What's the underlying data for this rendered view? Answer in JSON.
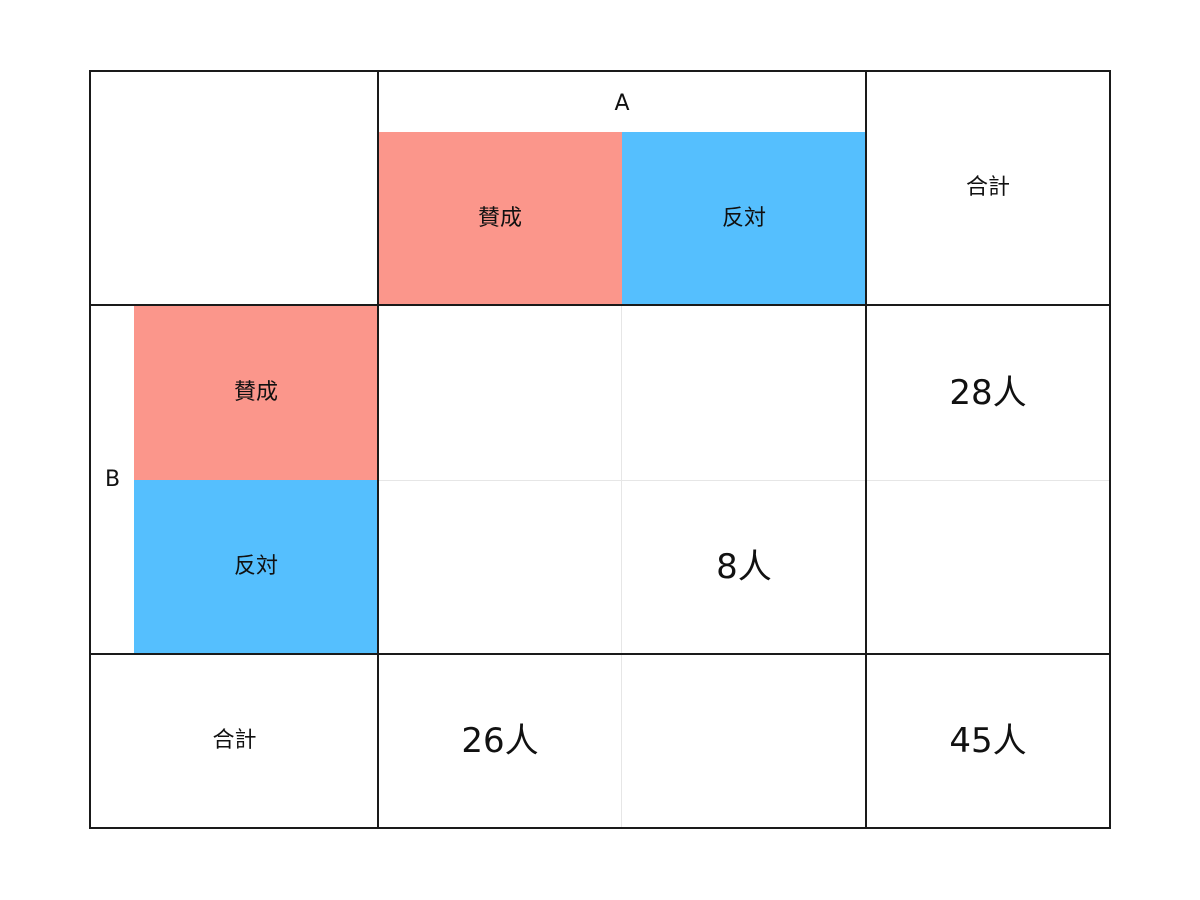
{
  "colors": {
    "approve": "#fb968b",
    "oppose": "#55bffe",
    "border": "#1a1a1a",
    "inner_grid": "#e6e6e6"
  },
  "header": {
    "a_label": "A",
    "b_label": "B",
    "total_label": "合計"
  },
  "columns": {
    "approve_label": "賛成",
    "oppose_label": "反対"
  },
  "rows": {
    "approve_label": "賛成",
    "oppose_label": "反対"
  },
  "cells": {
    "b_approve_a_approve": "",
    "b_approve_a_oppose": "",
    "b_approve_total": "28人",
    "b_oppose_a_approve": "",
    "b_oppose_a_oppose": "8人",
    "b_oppose_total": "",
    "total_a_approve": "26人",
    "total_a_oppose": "",
    "total_total": "45人"
  },
  "footer": {
    "total_label": "合計"
  }
}
